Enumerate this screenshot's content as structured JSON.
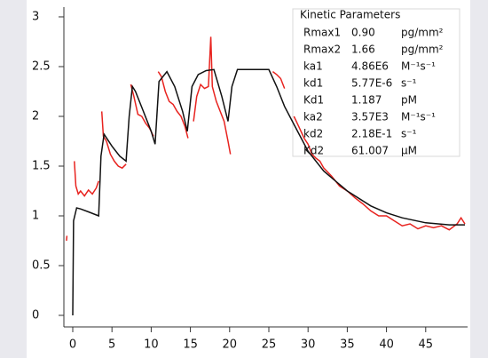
{
  "chart_data": {
    "type": "line",
    "xlim": [
      -1.13,
      50.34
    ],
    "ylim": [
      -0.116,
      3.098
    ],
    "xticks": [
      0,
      5,
      10,
      15,
      20,
      25,
      30,
      35,
      40,
      45
    ],
    "yticks": [
      0,
      0.5,
      1,
      1.5,
      2,
      2.5,
      3
    ],
    "grid": false,
    "series": [
      {
        "color": "#e8231f",
        "x": [
          -0.8,
          -0.75,
          null,
          0.2,
          0.4,
          0.7,
          1,
          1.5,
          2,
          2.5,
          3,
          3.3,
          null,
          3.7,
          3.9,
          4.3,
          4.8,
          5.3,
          5.8,
          6.3,
          6.8,
          null,
          7.4,
          7.8,
          8.3,
          8.8,
          9.3,
          9.8,
          10.3,
          null,
          10.9,
          11.3,
          11.8,
          12.3,
          12.8,
          13.3,
          13.8,
          14.3,
          14.7,
          null,
          15.4,
          15.8,
          16.3,
          16.8,
          17.3,
          17.6,
          17.8,
          18.3,
          18.8,
          19.3,
          19.8,
          20.1,
          null,
          25.5,
          26,
          26.5,
          27,
          null,
          28.2,
          28.8,
          29.5,
          30,
          30.5,
          31,
          31.5,
          32,
          33,
          34,
          35,
          36,
          37,
          38,
          39,
          40,
          41,
          42,
          43,
          44,
          45,
          46,
          47,
          48,
          49,
          49.5,
          50
        ],
        "values": [
          0.75,
          0.8,
          null,
          1.55,
          1.3,
          1.22,
          1.25,
          1.2,
          1.26,
          1.22,
          1.28,
          1.35,
          null,
          2.05,
          1.8,
          1.75,
          1.62,
          1.55,
          1.5,
          1.48,
          1.52,
          null,
          2.32,
          2.2,
          2.02,
          2.0,
          1.93,
          1.88,
          1.8,
          null,
          2.45,
          2.4,
          2.25,
          2.15,
          2.12,
          2.05,
          2.0,
          1.9,
          1.78,
          null,
          1.95,
          2.2,
          2.32,
          2.28,
          2.3,
          2.8,
          2.3,
          2.15,
          2.05,
          1.95,
          1.75,
          1.62,
          null,
          2.45,
          2.42,
          2.38,
          2.28,
          null,
          2.0,
          1.9,
          1.78,
          1.72,
          1.62,
          1.58,
          1.55,
          1.48,
          1.4,
          1.3,
          1.25,
          1.18,
          1.12,
          1.05,
          1.0,
          1.0,
          0.95,
          0.9,
          0.92,
          0.87,
          0.9,
          0.88,
          0.9,
          0.86,
          0.92,
          0.98,
          0.92
        ]
      },
      {
        "color": "#111111",
        "x": [
          0,
          0.1,
          0.5,
          1,
          2,
          3.3,
          3.6,
          4,
          5,
          6,
          6.8,
          7.2,
          7.6,
          8,
          9,
          10,
          10.5,
          11,
          12,
          13,
          14,
          14.6,
          15.2,
          16,
          17,
          18,
          19,
          19.8,
          20.3,
          21,
          22,
          23,
          24,
          25,
          26,
          27,
          28,
          30,
          32,
          35,
          38,
          40,
          42,
          45,
          48,
          50
        ],
        "values": [
          0,
          0.95,
          1.08,
          1.07,
          1.04,
          1.0,
          1.6,
          1.82,
          1.7,
          1.6,
          1.55,
          2.0,
          2.3,
          2.25,
          2.05,
          1.85,
          1.72,
          2.35,
          2.45,
          2.3,
          2.05,
          1.85,
          2.3,
          2.42,
          2.46,
          2.47,
          2.2,
          1.95,
          2.3,
          2.47,
          2.47,
          2.47,
          2.47,
          2.47,
          2.3,
          2.1,
          1.95,
          1.65,
          1.45,
          1.25,
          1.1,
          1.03,
          0.98,
          0.93,
          0.91,
          0.91
        ]
      }
    ]
  },
  "parameters": {
    "title": "Kinetic Parameters",
    "rows": [
      [
        "Rmax1",
        "0.90",
        "pg/mm²"
      ],
      [
        "Rmax2",
        "1.66",
        "pg/mm²"
      ],
      [
        "ka1",
        "4.86E6",
        "M⁻¹s⁻¹"
      ],
      [
        "kd1",
        "5.77E-6",
        "s⁻¹"
      ],
      [
        "Kd1",
        "1.187",
        "pM"
      ],
      [
        "ka2",
        "3.57E3",
        "M⁻¹s⁻¹"
      ],
      [
        "kd2",
        "2.18E-1",
        "s⁻¹"
      ],
      [
        "Kd2",
        "61.007",
        "μM"
      ]
    ]
  }
}
